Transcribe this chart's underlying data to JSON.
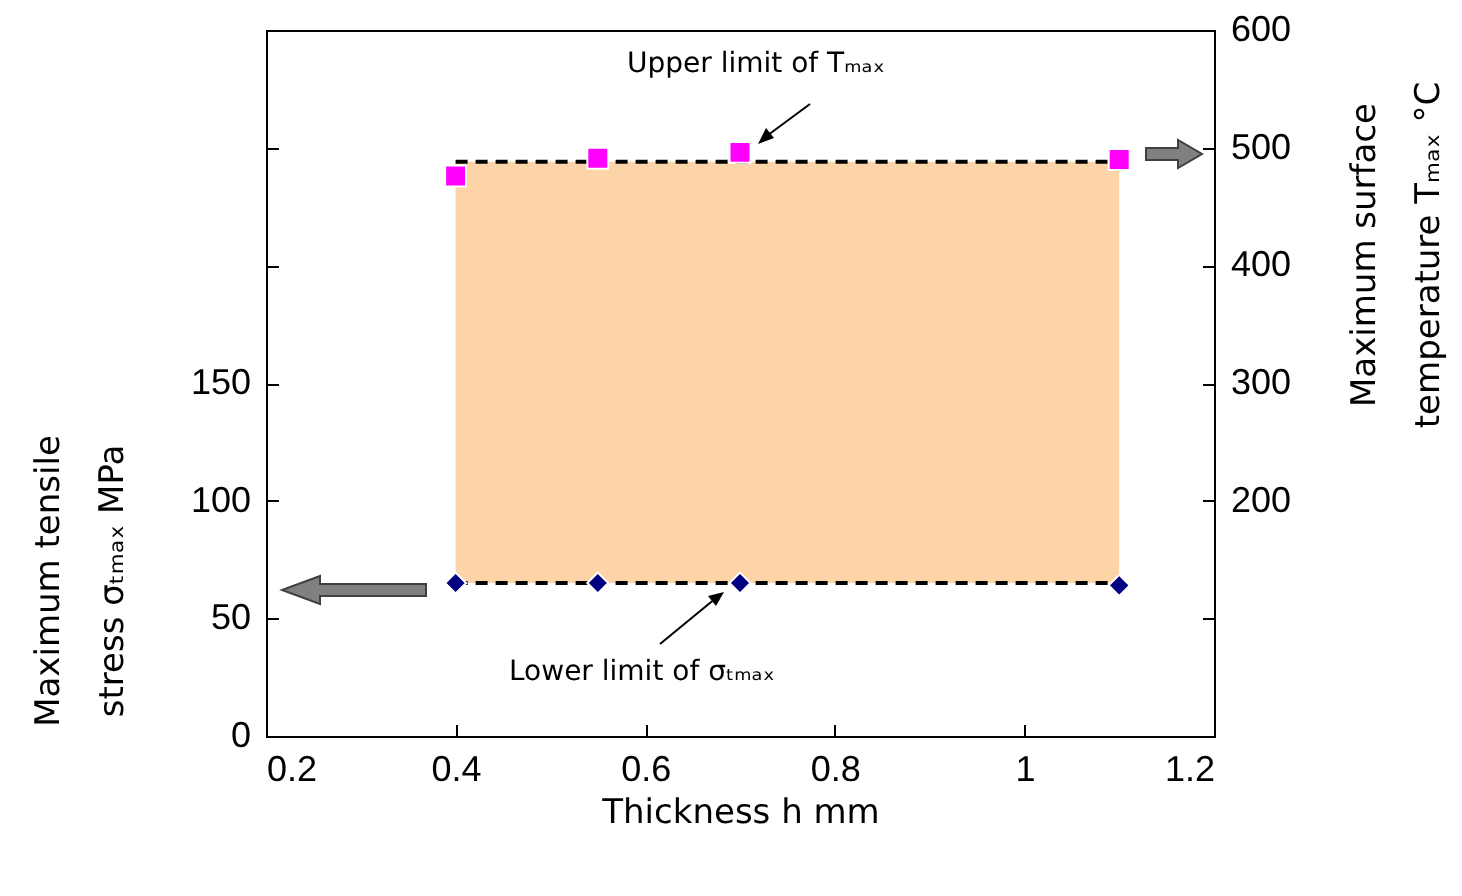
{
  "chart_data": {
    "type": "scatter",
    "xlabel": "Thickness h  mm",
    "ylabel": "Maximum tensile\nstress σₜₘₐₓ  MPa",
    "y2label": "Maximum surface\ntemperature Tₘₐₓ  °C",
    "xlim": [
      0.2,
      1.2
    ],
    "xticks": [
      0.2,
      0.4,
      0.6,
      0.8,
      1,
      1.2
    ],
    "ylim": [
      0,
      300
    ],
    "yticks": [
      0,
      50,
      100,
      150,
      {
        "value": 200,
        "label": null
      },
      {
        "value": 250,
        "label": null
      }
    ],
    "y2lim": [
      0,
      600
    ],
    "y2ticks": [
      {
        "value": 100,
        "label": null
      },
      200,
      300,
      400,
      500,
      600
    ],
    "grid": false,
    "annotations": [
      "Upper limit of Tₘₐₓ",
      "Lower limit of σₜₘₐₓ"
    ],
    "series": [
      {
        "type": "line",
        "axis": "y2",
        "x": [
          0.4,
          1.1
        ],
        "values": [
          488,
          488
        ],
        "lower": [
          130,
          130
        ],
        "upper": [
          488,
          488
        ],
        "color": "#000000",
        "line_style": "dashed",
        "marker": "none"
      },
      {
        "axis": "y2",
        "x": [
          0.4,
          0.55,
          0.7,
          1.1
        ],
        "values": [
          476,
          491,
          496,
          490
        ],
        "color": "#ff00ff",
        "marker": "square"
      },
      {
        "type": "line",
        "x": [
          0.4,
          1.1
        ],
        "values": [
          65,
          65
        ],
        "color": "#000000",
        "line_style": "dashed",
        "marker": "none"
      },
      {
        "x": [
          0.4,
          0.55,
          0.7,
          1.1
        ],
        "values": [
          65,
          65,
          65,
          64
        ],
        "color": "#000080",
        "marker": "diamond"
      }
    ]
  }
}
